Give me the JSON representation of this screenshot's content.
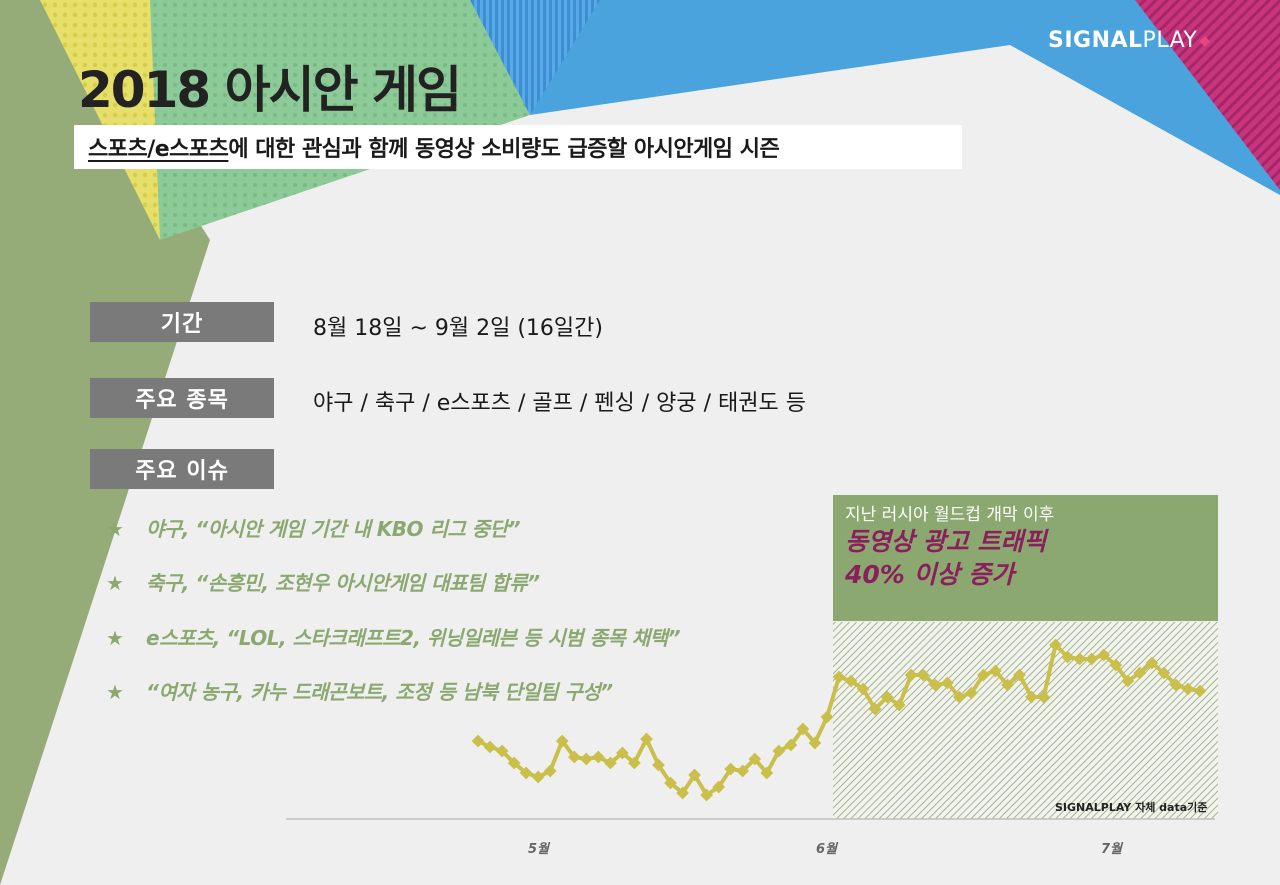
{
  "brand": {
    "logo_bold": "SIGNAL",
    "logo_light": "PLAY"
  },
  "header": {
    "title": "2018 아시안 게임",
    "subtitle_part1": "스포츠/e스포츠",
    "subtitle_part2": "에 대한 관심과 함께 동영상 소비량도 급증할 아시안게임 시즌"
  },
  "rows": [
    {
      "label": "기간",
      "value": "8월 18일 ~ 9월 2일 (16일간)"
    },
    {
      "label": "주요 종목",
      "value": "야구 / 축구 / e스포츠 / 골프 / 펜싱 / 양궁 / 태권도 등"
    },
    {
      "label": "주요 이슈",
      "value": ""
    }
  ],
  "issues": [
    {
      "star": "★",
      "text": "야구, “아시안 게임 기간 내 KBO 리그 중단”"
    },
    {
      "star": "★",
      "text": "축구, “손흥민, 조현우 아시안게임 대표팀 합류”"
    },
    {
      "star": "★",
      "text": "e스포츠, “LOL, 스타크래프트2, 위닝일레븐 등 시범 종목 채택”"
    },
    {
      "star": "★",
      "text": "“여자 농구, 카누 드래곤보트, 조정 등 남북 단일팀 구성”"
    }
  ],
  "callout": {
    "line1": "지난 러시아 월드컵 개막 이후",
    "line2": "동영상 광고 트래픽",
    "line3": "40% 이상 증가"
  },
  "source_note": "SIGNALPLAY 자체 data기준",
  "colors": {
    "accent_green": "#8ba870",
    "line_color": "#c9bf4a",
    "highlight_magenta": "#8a1f5c",
    "label_gray": "#7a7a7a"
  },
  "chart_data": {
    "type": "line",
    "x_ticks": [
      "5월",
      "6월",
      "7월"
    ],
    "series": [
      {
        "values": [
          3.2,
          2.9,
          2.7,
          2.1,
          1.6,
          1.4,
          1.7,
          3.2,
          2.4,
          2.3,
          2.4,
          2.1,
          2.6,
          2.1,
          3.3,
          2.0,
          1.1,
          0.6,
          1.5,
          0.5,
          0.9,
          1.8,
          1.7,
          2.3,
          1.6,
          2.7,
          3.0,
          3.8,
          3.1,
          4.4,
          6.4,
          6.2,
          5.8,
          4.8,
          5.4,
          5.0,
          6.5,
          6.5,
          6.0,
          6.1,
          5.4,
          5.6,
          6.5,
          6.7,
          6.0,
          6.5,
          5.4,
          5.4,
          8.0,
          7.4,
          7.3,
          7.3,
          7.5,
          7.0,
          6.2,
          6.6,
          7.1,
          6.6,
          6.0,
          5.8,
          5.7
        ]
      }
    ],
    "grid": false,
    "legend": "none",
    "highlight_region_start_tick": "6월"
  }
}
